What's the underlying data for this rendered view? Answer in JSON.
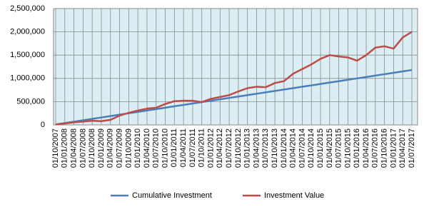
{
  "chart_data": {
    "type": "line",
    "x": [
      "01/10/2007",
      "01/01/2008",
      "01/04/2008",
      "01/07/2008",
      "01/10/2008",
      "01/01/2009",
      "01/04/2009",
      "01/07/2009",
      "01/10/2009",
      "01/01/2010",
      "01/04/2010",
      "01/07/2010",
      "01/10/2010",
      "01/01/2011",
      "01/04/2011",
      "01/07/2011",
      "01/10/2011",
      "01/01/2012",
      "01/04/2012",
      "01/07/2012",
      "01/10/2012",
      "01/01/2013",
      "01/04/2013",
      "01/07/2013",
      "01/10/2013",
      "01/01/2014",
      "01/04/2014",
      "01/07/2014",
      "01/10/2014",
      "01/01/2015",
      "01/04/2015",
      "01/07/2015",
      "01/10/2015",
      "01/01/2016",
      "01/04/2016",
      "01/07/2016",
      "01/10/2016",
      "01/01/2017",
      "01/04/2017",
      "01/07/2017"
    ],
    "series": [
      {
        "name": "Cumulative Investment",
        "color": "#4a7ebb",
        "values": [
          10000,
          40000,
          70000,
          100000,
          130000,
          160000,
          190000,
          220000,
          250000,
          280000,
          310000,
          340000,
          370000,
          400000,
          430000,
          460000,
          490000,
          520000,
          550000,
          580000,
          610000,
          640000,
          670000,
          700000,
          730000,
          760000,
          790000,
          820000,
          850000,
          880000,
          910000,
          940000,
          970000,
          1000000,
          1030000,
          1060000,
          1090000,
          1120000,
          1150000,
          1180000
        ]
      },
      {
        "name": "Investment Value",
        "color": "#be4b48",
        "values": [
          10000,
          30000,
          55000,
          70000,
          90000,
          80000,
          110000,
          200000,
          260000,
          310000,
          350000,
          370000,
          450000,
          510000,
          520000,
          520000,
          490000,
          560000,
          600000,
          640000,
          720000,
          790000,
          820000,
          810000,
          900000,
          940000,
          1100000,
          1200000,
          1300000,
          1420000,
          1500000,
          1470000,
          1450000,
          1380000,
          1500000,
          1660000,
          1690000,
          1640000,
          1880000,
          2000000
        ]
      }
    ],
    "ylim": [
      0,
      2500000
    ],
    "yticks": [
      0,
      {
        "value": 500000,
        "label": "500,000"
      },
      {
        "value": 1000000,
        "label": "1,000,000"
      },
      {
        "value": 1500000,
        "label": "1,500,000"
      },
      {
        "value": 2000000,
        "label": "2,000,000"
      },
      {
        "value": 2500000,
        "label": "2,500,000"
      }
    ],
    "grid": true,
    "legend": "bottom",
    "background": "#dbeef4"
  }
}
